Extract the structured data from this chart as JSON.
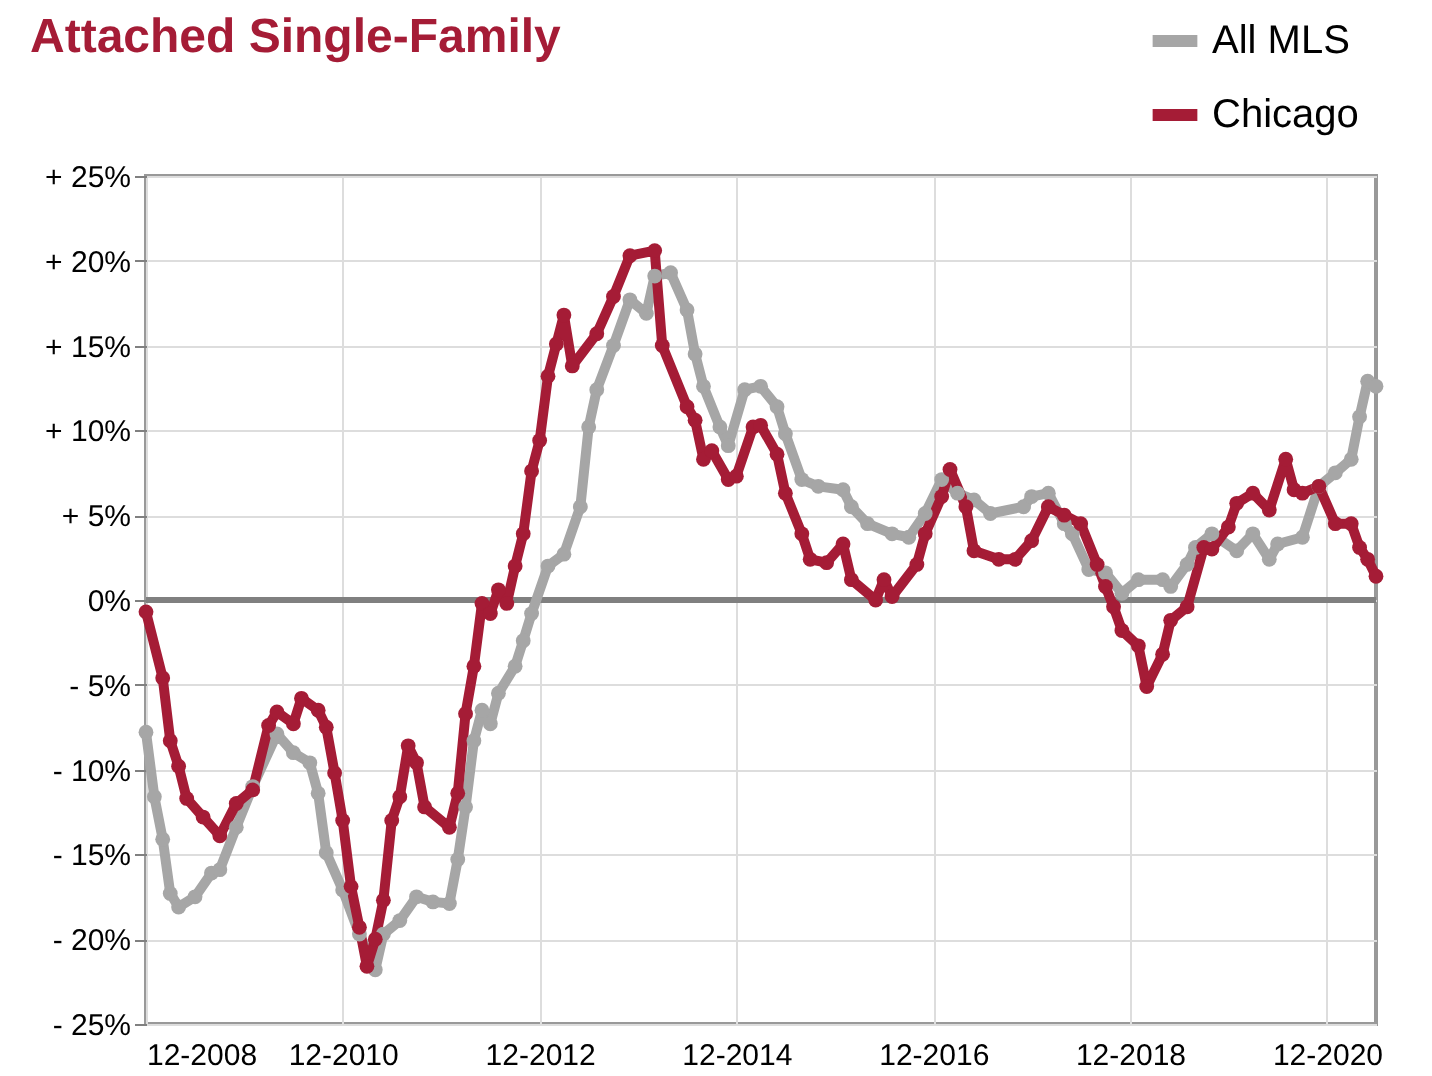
{
  "chart_data": {
    "type": "line",
    "title": "Attached Single-Family",
    "xlim": [
      "2008-12",
      "2021-06"
    ],
    "xticks": [
      {
        "value": "2008-12",
        "label": "12-2008"
      },
      {
        "value": "2010-12",
        "label": "12-2010"
      },
      {
        "value": "2012-12",
        "label": "12-2012"
      },
      {
        "value": "2014-12",
        "label": "12-2014"
      },
      {
        "value": "2016-12",
        "label": "12-2016"
      },
      {
        "value": "2018-12",
        "label": "12-2018"
      },
      {
        "value": "2020-12",
        "label": "12-2020"
      }
    ],
    "ylim": [
      -25,
      25
    ],
    "yticks": [
      {
        "value": -25,
        "label": "- 25%"
      },
      {
        "value": -20,
        "label": "- 20%"
      },
      {
        "value": -15,
        "label": "- 15%"
      },
      {
        "value": -10,
        "label": "- 10%"
      },
      {
        "value": -5,
        "label": "- 5%"
      },
      {
        "value": 0,
        "label": "0%"
      },
      {
        "value": 5,
        "label": "+ 5%"
      },
      {
        "value": 10,
        "label": "+ 10%"
      },
      {
        "value": 15,
        "label": "+ 15%"
      },
      {
        "value": 20,
        "label": "+ 20%"
      },
      {
        "value": 25,
        "label": "+ 25%"
      }
    ],
    "grid": true,
    "legend": "top right",
    "marker": "circle",
    "line_style": "solid",
    "ref_lines": [
      {
        "axis": "y",
        "value": 0,
        "color": "#808080"
      }
    ],
    "series": [
      {
        "name": "All MLS",
        "color": "#a6a6a6",
        "x": [
          "2008-12",
          "2009-01",
          "2009-02",
          "2009-03",
          "2009-04",
          "2009-06",
          "2009-08",
          "2009-09",
          "2009-11",
          "2010-01",
          "2010-04",
          "2010-06",
          "2010-08",
          "2010-09",
          "2010-10",
          "2010-12",
          "2011-02",
          "2011-04",
          "2011-05",
          "2011-07",
          "2011-09",
          "2011-11",
          "2012-01",
          "2012-02",
          "2012-03",
          "2012-04",
          "2012-05",
          "2012-06",
          "2012-07",
          "2012-09",
          "2012-10",
          "2012-11",
          "2013-01",
          "2013-03",
          "2013-05",
          "2013-06",
          "2013-07",
          "2013-09",
          "2013-11",
          "2014-01",
          "2014-02",
          "2014-04",
          "2014-06",
          "2014-07",
          "2014-08",
          "2014-10",
          "2014-11",
          "2015-01",
          "2015-03",
          "2015-05",
          "2015-06",
          "2015-08",
          "2015-10",
          "2016-01",
          "2016-02",
          "2016-04",
          "2016-07",
          "2016-09",
          "2016-11",
          "2017-01",
          "2017-03",
          "2017-05",
          "2017-07",
          "2017-11",
          "2017-12",
          "2018-02",
          "2018-04",
          "2018-05",
          "2018-07",
          "2018-09",
          "2018-11",
          "2019-01",
          "2019-04",
          "2019-05",
          "2019-07",
          "2019-08",
          "2019-10",
          "2020-01",
          "2020-03",
          "2020-05",
          "2020-06",
          "2020-09",
          "2020-11",
          "2021-01",
          "2021-03",
          "2021-04",
          "2021-05",
          "2021-06"
        ],
        "values": [
          -7.8,
          -11.6,
          -14.1,
          -17.3,
          -18.1,
          -17.5,
          -16.1,
          -15.9,
          -13.4,
          -11.0,
          -7.9,
          -9.0,
          -9.6,
          -11.4,
          -14.9,
          -17.1,
          -19.7,
          -21.8,
          -19.7,
          -18.9,
          -17.5,
          -17.8,
          -17.9,
          -15.3,
          -12.2,
          -8.3,
          -6.5,
          -7.3,
          -5.5,
          -3.9,
          -2.4,
          -0.8,
          2.0,
          2.7,
          5.5,
          10.2,
          12.4,
          15.0,
          17.7,
          16.9,
          19.1,
          19.3,
          17.1,
          14.5,
          12.6,
          10.2,
          9.1,
          12.4,
          12.6,
          11.4,
          9.8,
          7.1,
          6.7,
          6.5,
          5.5,
          4.5,
          3.9,
          3.7,
          5.1,
          7.1,
          6.3,
          5.9,
          5.1,
          5.5,
          6.1,
          6.3,
          4.5,
          3.9,
          1.8,
          1.6,
          0.4,
          1.2,
          1.2,
          0.8,
          2.1,
          3.1,
          3.9,
          2.9,
          3.9,
          2.4,
          3.3,
          3.7,
          6.7,
          7.5,
          8.3,
          10.8,
          12.9,
          12.6
        ]
      },
      {
        "name": "Chicago",
        "color": "#a51c36",
        "x": [
          "2008-12",
          "2009-02",
          "2009-03",
          "2009-04",
          "2009-05",
          "2009-07",
          "2009-09",
          "2009-11",
          "2010-01",
          "2010-03",
          "2010-04",
          "2010-06",
          "2010-07",
          "2010-09",
          "2010-10",
          "2010-11",
          "2010-12",
          "2011-01",
          "2011-02",
          "2011-03",
          "2011-04",
          "2011-05",
          "2011-06",
          "2011-07",
          "2011-08",
          "2011-09",
          "2011-10",
          "2012-01",
          "2012-02",
          "2012-03",
          "2012-04",
          "2012-05",
          "2012-06",
          "2012-07",
          "2012-08",
          "2012-09",
          "2012-10",
          "2012-11",
          "2012-12",
          "2013-01",
          "2013-02",
          "2013-03",
          "2013-04",
          "2013-07",
          "2013-09",
          "2013-11",
          "2014-02",
          "2014-03",
          "2014-06",
          "2014-07",
          "2014-08",
          "2014-09",
          "2014-11",
          "2014-12",
          "2015-02",
          "2015-03",
          "2015-05",
          "2015-06",
          "2015-08",
          "2015-09",
          "2015-11",
          "2016-01",
          "2016-02",
          "2016-05",
          "2016-06",
          "2016-07",
          "2016-10",
          "2016-11",
          "2017-01",
          "2017-02",
          "2017-04",
          "2017-05",
          "2017-08",
          "2017-10",
          "2017-12",
          "2018-02",
          "2018-04",
          "2018-06",
          "2018-08",
          "2018-09",
          "2018-10",
          "2018-11",
          "2019-01",
          "2019-02",
          "2019-04",
          "2019-05",
          "2019-07",
          "2019-09",
          "2019-10",
          "2019-12",
          "2020-01",
          "2020-03",
          "2020-05",
          "2020-07",
          "2020-08",
          "2020-09",
          "2020-11",
          "2021-01",
          "2021-03",
          "2021-04",
          "2021-05",
          "2021-06"
        ],
        "values": [
          -0.7,
          -4.6,
          -8.3,
          -9.8,
          -11.7,
          -12.8,
          -13.9,
          -12.0,
          -11.2,
          -7.4,
          -6.6,
          -7.3,
          -5.8,
          -6.5,
          -7.5,
          -10.2,
          -13.0,
          -16.9,
          -19.3,
          -21.6,
          -20.0,
          -17.7,
          -13.0,
          -11.6,
          -8.6,
          -9.6,
          -12.2,
          -13.4,
          -11.4,
          -6.7,
          -3.9,
          -0.2,
          -0.8,
          0.6,
          -0.2,
          2.0,
          3.9,
          7.6,
          9.4,
          13.2,
          15.1,
          16.8,
          13.8,
          15.7,
          17.9,
          20.3,
          20.6,
          15.0,
          11.4,
          10.6,
          8.3,
          8.8,
          7.1,
          7.3,
          10.2,
          10.3,
          8.6,
          6.3,
          3.9,
          2.4,
          2.2,
          3.3,
          1.2,
          0.0,
          1.2,
          0.2,
          2.1,
          3.9,
          6.1,
          7.7,
          5.5,
          2.9,
          2.4,
          2.4,
          3.5,
          5.5,
          5.0,
          4.5,
          2.1,
          0.8,
          -0.4,
          -1.8,
          -2.7,
          -5.1,
          -3.2,
          -1.2,
          -0.4,
          3.1,
          3.0,
          4.3,
          5.7,
          6.3,
          5.3,
          8.3,
          6.5,
          6.3,
          6.7,
          4.5,
          4.5,
          3.1,
          2.4,
          1.4
        ]
      }
    ]
  }
}
